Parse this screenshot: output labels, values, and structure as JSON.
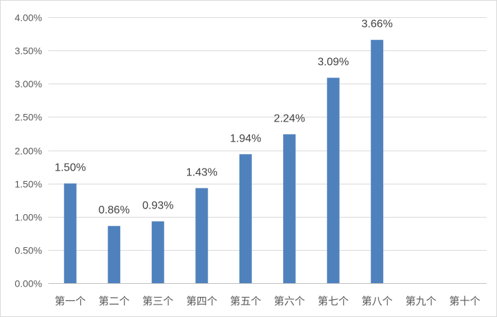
{
  "chart_data": {
    "type": "bar",
    "title": "",
    "xlabel": "",
    "ylabel": "",
    "categories": [
      "第一个",
      "第二个",
      "第三个",
      "第四个",
      "第五个",
      "第六个",
      "第七个",
      "第八个",
      "第九个",
      "第十个"
    ],
    "values": [
      1.5,
      0.86,
      0.93,
      1.43,
      1.94,
      2.24,
      3.09,
      3.66,
      null,
      null
    ],
    "data_labels": [
      "1.50%",
      "0.86%",
      "0.93%",
      "1.43%",
      "1.94%",
      "2.24%",
      "3.09%",
      "3.66%",
      "",
      ""
    ],
    "ylim": [
      0,
      4
    ],
    "y_ticks": [
      "0.00%",
      "0.50%",
      "1.00%",
      "1.50%",
      "2.00%",
      "2.50%",
      "3.00%",
      "3.50%",
      "4.00%"
    ],
    "y_tick_values": [
      0,
      0.5,
      1,
      1.5,
      2,
      2.5,
      3,
      3.5,
      4
    ],
    "grid": true,
    "legend": "none",
    "bar_color": "#4f81bd",
    "grid_color": "#d9d9d9",
    "axis_text_color": "#595959",
    "label_text_color": "#404040"
  }
}
